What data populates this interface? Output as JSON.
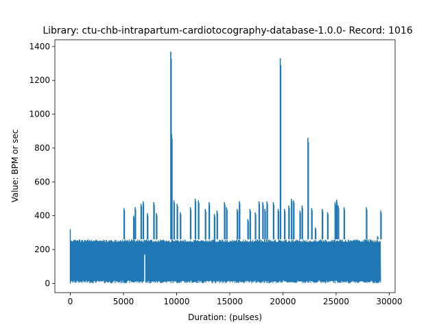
{
  "chart_data": {
    "type": "line",
    "title": "Library: ctu-chb-intrapartum-cardiotocography-database-1.0.0- Record: 1016",
    "xlabel": "Duration: (pulses)",
    "ylabel": "Value: BPM or sec",
    "xlim": [
      -1450,
      30550
    ],
    "ylim": [
      -55,
      1440
    ],
    "xticks": [
      0,
      5000,
      10000,
      15000,
      20000,
      25000,
      30000
    ],
    "xtick_labels": [
      "0",
      "5000",
      "10000",
      "15000",
      "20000",
      "25000",
      "30000"
    ],
    "yticks": [
      0,
      200,
      400,
      600,
      800,
      1000,
      1200,
      1400
    ],
    "ytick_labels": [
      "0",
      "200",
      "400",
      "600",
      "800",
      "1000",
      "1200",
      "1400"
    ],
    "grid": false,
    "legend": "none",
    "series": [
      {
        "color": "#1f77b4",
        "x_range": [
          0,
          29200
        ],
        "baseline_band": [
          0,
          260
        ],
        "band_start": [
          0,
          320
        ],
        "spikes": [
          {
            "x": 5050,
            "y": 445
          },
          {
            "x": 5950,
            "y": 400
          },
          {
            "x": 6100,
            "y": 450
          },
          {
            "x": 6650,
            "y": 470
          },
          {
            "x": 6850,
            "y": 485
          },
          {
            "x": 7250,
            "y": 415
          },
          {
            "x": 7850,
            "y": 480
          },
          {
            "x": 8100,
            "y": 415
          },
          {
            "x": 9450,
            "y": 1370
          },
          {
            "x": 9530,
            "y": 880
          },
          {
            "x": 9750,
            "y": 490
          },
          {
            "x": 10050,
            "y": 470
          },
          {
            "x": 10350,
            "y": 420
          },
          {
            "x": 11300,
            "y": 450
          },
          {
            "x": 11750,
            "y": 500
          },
          {
            "x": 12050,
            "y": 490
          },
          {
            "x": 12700,
            "y": 440
          },
          {
            "x": 13050,
            "y": 480
          },
          {
            "x": 13550,
            "y": 410
          },
          {
            "x": 13800,
            "y": 430
          },
          {
            "x": 14500,
            "y": 480
          },
          {
            "x": 14700,
            "y": 450
          },
          {
            "x": 15700,
            "y": 440
          },
          {
            "x": 15900,
            "y": 485
          },
          {
            "x": 16700,
            "y": 380
          },
          {
            "x": 16900,
            "y": 440
          },
          {
            "x": 17400,
            "y": 420
          },
          {
            "x": 17750,
            "y": 485
          },
          {
            "x": 18100,
            "y": 480
          },
          {
            "x": 18300,
            "y": 440
          },
          {
            "x": 18500,
            "y": 485
          },
          {
            "x": 19100,
            "y": 480
          },
          {
            "x": 19550,
            "y": 440
          },
          {
            "x": 19750,
            "y": 1330
          },
          {
            "x": 20150,
            "y": 440
          },
          {
            "x": 20550,
            "y": 460
          },
          {
            "x": 20800,
            "y": 500
          },
          {
            "x": 21000,
            "y": 490
          },
          {
            "x": 21600,
            "y": 430
          },
          {
            "x": 21800,
            "y": 460
          },
          {
            "x": 22350,
            "y": 860
          },
          {
            "x": 22700,
            "y": 445
          },
          {
            "x": 23050,
            "y": 330
          },
          {
            "x": 23700,
            "y": 440
          },
          {
            "x": 24200,
            "y": 420
          },
          {
            "x": 24900,
            "y": 480
          },
          {
            "x": 25050,
            "y": 495
          },
          {
            "x": 25200,
            "y": 460
          },
          {
            "x": 25750,
            "y": 450
          },
          {
            "x": 27850,
            "y": 450
          },
          {
            "x": 28900,
            "y": 280
          },
          {
            "x": 29200,
            "y": 430
          }
        ]
      }
    ]
  }
}
